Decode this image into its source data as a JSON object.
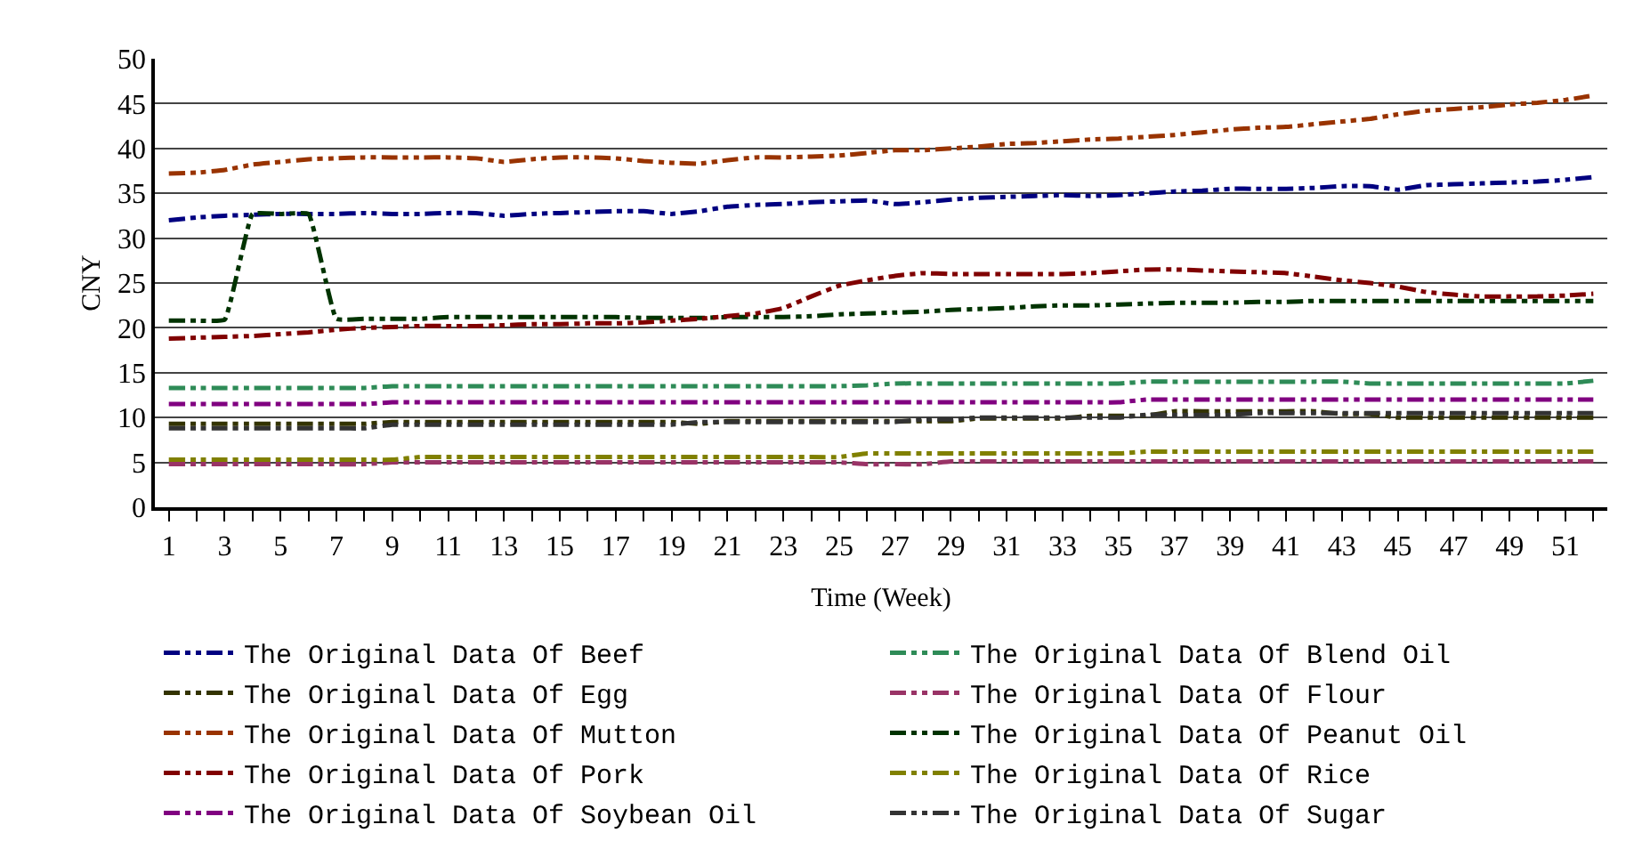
{
  "chart_data": {
    "type": "line",
    "xlabel": "Time (Week)",
    "ylabel": "CNY",
    "x": [
      1,
      2,
      3,
      4,
      5,
      6,
      7,
      8,
      9,
      10,
      11,
      12,
      13,
      14,
      15,
      16,
      17,
      18,
      19,
      20,
      21,
      22,
      23,
      24,
      25,
      26,
      27,
      28,
      29,
      30,
      31,
      32,
      33,
      34,
      35,
      36,
      37,
      38,
      39,
      40,
      41,
      42,
      43,
      44,
      45,
      46,
      47,
      48,
      49,
      50,
      51,
      52
    ],
    "xlim": [
      0.5,
      52.5
    ],
    "xticks": [
      1,
      {
        "value": 2,
        "label": null
      },
      3,
      {
        "value": 4,
        "label": null
      },
      5,
      {
        "value": 6,
        "label": null
      },
      7,
      {
        "value": 8,
        "label": null
      },
      9,
      {
        "value": 10,
        "label": null
      },
      11,
      {
        "value": 12,
        "label": null
      },
      13,
      {
        "value": 14,
        "label": null
      },
      15,
      {
        "value": 16,
        "label": null
      },
      17,
      {
        "value": 18,
        "label": null
      },
      19,
      {
        "value": 20,
        "label": null
      },
      21,
      {
        "value": 22,
        "label": null
      },
      23,
      {
        "value": 24,
        "label": null
      },
      25,
      {
        "value": 26,
        "label": null
      },
      27,
      {
        "value": 28,
        "label": null
      },
      29,
      {
        "value": 30,
        "label": null
      },
      31,
      {
        "value": 32,
        "label": null
      },
      33,
      {
        "value": 34,
        "label": null
      },
      35,
      {
        "value": 36,
        "label": null
      },
      37,
      {
        "value": 38,
        "label": null
      },
      39,
      {
        "value": 40,
        "label": null
      },
      41,
      {
        "value": 42,
        "label": null
      },
      43,
      {
        "value": 44,
        "label": null
      },
      45,
      {
        "value": 46,
        "label": null
      },
      47,
      {
        "value": 48,
        "label": null
      },
      49,
      {
        "value": 50,
        "label": null
      },
      51,
      {
        "value": 52,
        "label": null
      }
    ],
    "ylim": [
      0,
      50
    ],
    "yticks": [
      0,
      5,
      10,
      15,
      20,
      25,
      30,
      35,
      40,
      45,
      50
    ],
    "grid": "y",
    "legend": "bottom",
    "line_style": "dashed",
    "marker": "none",
    "series": [
      {
        "name": "The Original Data Of Beef",
        "color": "#000080",
        "values": [
          32.0,
          32.3,
          32.5,
          32.6,
          32.7,
          32.7,
          32.7,
          32.8,
          32.7,
          32.7,
          32.8,
          32.8,
          32.5,
          32.7,
          32.8,
          32.9,
          33.0,
          33.0,
          32.7,
          33.0,
          33.5,
          33.7,
          33.8,
          34.0,
          34.1,
          34.2,
          33.8,
          34.0,
          34.3,
          34.5,
          34.6,
          34.7,
          34.8,
          34.7,
          34.8,
          35.0,
          35.2,
          35.3,
          35.5,
          35.5,
          35.5,
          35.6,
          35.8,
          35.8,
          35.4,
          35.9,
          36.0,
          36.1,
          36.2,
          36.3,
          36.5,
          36.8
        ]
      },
      {
        "name": "The Original Data Of Blend Oil",
        "color": "#2e8b57",
        "values": [
          13.3,
          13.3,
          13.3,
          13.3,
          13.3,
          13.3,
          13.3,
          13.3,
          13.5,
          13.5,
          13.5,
          13.5,
          13.5,
          13.5,
          13.5,
          13.5,
          13.5,
          13.5,
          13.5,
          13.5,
          13.5,
          13.5,
          13.5,
          13.5,
          13.5,
          13.6,
          13.8,
          13.8,
          13.8,
          13.8,
          13.8,
          13.8,
          13.8,
          13.8,
          13.8,
          14.0,
          14.0,
          14.0,
          14.0,
          14.0,
          14.0,
          14.0,
          14.0,
          13.8,
          13.8,
          13.8,
          13.8,
          13.8,
          13.8,
          13.8,
          13.8,
          14.1
        ]
      },
      {
        "name": "The Original Data Of Egg",
        "color": "#333300",
        "values": [
          9.3,
          9.3,
          9.3,
          9.3,
          9.3,
          9.3,
          9.3,
          9.3,
          9.5,
          9.5,
          9.5,
          9.5,
          9.5,
          9.5,
          9.5,
          9.5,
          9.5,
          9.5,
          9.5,
          9.3,
          9.6,
          9.6,
          9.6,
          9.6,
          9.6,
          9.6,
          9.6,
          9.6,
          9.6,
          9.9,
          9.9,
          9.9,
          9.9,
          10.2,
          10.2,
          10.2,
          10.7,
          10.7,
          10.7,
          10.7,
          10.7,
          10.7,
          10.4,
          10.4,
          10.0,
          10.0,
          10.0,
          10.0,
          10.0,
          10.0,
          10.0,
          10.0
        ]
      },
      {
        "name": "The Original Data Of Flour",
        "color": "#993366",
        "values": [
          4.8,
          4.8,
          4.8,
          4.8,
          4.8,
          4.8,
          4.8,
          4.8,
          5.0,
          5.0,
          5.0,
          5.0,
          5.0,
          5.0,
          5.0,
          5.0,
          5.0,
          5.0,
          5.0,
          5.0,
          5.0,
          5.0,
          5.0,
          5.0,
          5.0,
          4.8,
          4.8,
          4.8,
          5.1,
          5.1,
          5.1,
          5.1,
          5.1,
          5.1,
          5.1,
          5.1,
          5.1,
          5.1,
          5.1,
          5.1,
          5.1,
          5.1,
          5.1,
          5.1,
          5.1,
          5.1,
          5.1,
          5.1,
          5.1,
          5.1,
          5.1,
          5.1
        ]
      },
      {
        "name": "The Original Data Of Mutton",
        "color": "#993300",
        "values": [
          37.2,
          37.3,
          37.6,
          38.2,
          38.5,
          38.8,
          38.9,
          39.0,
          39.0,
          39.0,
          39.0,
          38.9,
          38.5,
          38.8,
          39.0,
          39.0,
          38.9,
          38.6,
          38.4,
          38.3,
          38.7,
          39.0,
          39.0,
          39.1,
          39.2,
          39.5,
          39.8,
          39.8,
          40.0,
          40.2,
          40.5,
          40.6,
          40.8,
          41.0,
          41.1,
          41.3,
          41.5,
          41.8,
          42.1,
          42.3,
          42.4,
          42.7,
          43.0,
          43.3,
          43.8,
          44.2,
          44.4,
          44.6,
          44.9,
          45.1,
          45.4,
          45.9
        ]
      },
      {
        "name": "The Original Data Of Peanut Oil",
        "color": "#003300",
        "values": [
          20.8,
          20.8,
          20.9,
          32.7,
          32.7,
          32.7,
          21.0,
          21.0,
          21.0,
          21.0,
          21.2,
          21.2,
          21.2,
          21.2,
          21.2,
          21.2,
          21.2,
          21.1,
          21.1,
          21.1,
          21.2,
          21.2,
          21.2,
          21.3,
          21.5,
          21.6,
          21.7,
          21.8,
          22.0,
          22.1,
          22.2,
          22.4,
          22.5,
          22.5,
          22.6,
          22.7,
          22.8,
          22.8,
          22.8,
          22.9,
          22.9,
          23.0,
          23.0,
          23.0,
          23.0,
          23.0,
          23.0,
          23.0,
          23.0,
          23.0,
          23.0,
          23.0
        ]
      },
      {
        "name": "The Original Data Of Pork",
        "color": "#800000",
        "values": [
          18.8,
          18.9,
          19.0,
          19.1,
          19.3,
          19.5,
          19.8,
          20.0,
          20.1,
          20.2,
          20.2,
          20.2,
          20.3,
          20.4,
          20.4,
          20.5,
          20.5,
          20.6,
          20.8,
          21.0,
          21.3,
          21.6,
          22.2,
          23.5,
          24.7,
          25.3,
          25.8,
          26.1,
          26.0,
          26.0,
          26.0,
          26.0,
          26.0,
          26.1,
          26.3,
          26.5,
          26.5,
          26.4,
          26.3,
          26.2,
          26.1,
          25.7,
          25.3,
          25.0,
          24.6,
          24.0,
          23.7,
          23.5,
          23.5,
          23.5,
          23.6,
          23.8
        ]
      },
      {
        "name": "The Original Data Of Rice",
        "color": "#808000",
        "values": [
          5.3,
          5.3,
          5.3,
          5.3,
          5.3,
          5.3,
          5.3,
          5.3,
          5.3,
          5.6,
          5.6,
          5.6,
          5.6,
          5.6,
          5.6,
          5.6,
          5.6,
          5.6,
          5.6,
          5.6,
          5.6,
          5.6,
          5.6,
          5.6,
          5.6,
          6.0,
          6.0,
          6.0,
          6.0,
          6.0,
          6.0,
          6.0,
          6.0,
          6.0,
          6.0,
          6.2,
          6.2,
          6.2,
          6.2,
          6.2,
          6.2,
          6.2,
          6.2,
          6.2,
          6.2,
          6.2,
          6.2,
          6.2,
          6.2,
          6.2,
          6.2,
          6.2
        ]
      },
      {
        "name": "The Original Data Of Soybean Oil",
        "color": "#800080",
        "values": [
          11.5,
          11.5,
          11.5,
          11.5,
          11.5,
          11.5,
          11.5,
          11.5,
          11.7,
          11.7,
          11.7,
          11.7,
          11.7,
          11.7,
          11.7,
          11.7,
          11.7,
          11.7,
          11.7,
          11.7,
          11.7,
          11.7,
          11.7,
          11.7,
          11.7,
          11.7,
          11.7,
          11.7,
          11.7,
          11.7,
          11.7,
          11.7,
          11.7,
          11.7,
          11.7,
          12.0,
          12.0,
          12.0,
          12.0,
          12.0,
          12.0,
          12.0,
          12.0,
          12.0,
          12.0,
          12.0,
          12.0,
          12.0,
          12.0,
          12.0,
          12.0,
          12.0
        ]
      },
      {
        "name": "The Original Data Of Sugar",
        "color": "#333333",
        "values": [
          8.8,
          8.8,
          8.8,
          8.8,
          8.8,
          8.8,
          8.8,
          8.8,
          9.2,
          9.2,
          9.2,
          9.2,
          9.2,
          9.2,
          9.2,
          9.2,
          9.2,
          9.2,
          9.2,
          9.5,
          9.5,
          9.5,
          9.5,
          9.5,
          9.5,
          9.5,
          9.5,
          9.8,
          9.8,
          10.0,
          10.0,
          10.0,
          10.0,
          10.0,
          10.0,
          10.3,
          10.3,
          10.3,
          10.3,
          10.5,
          10.5,
          10.5,
          10.5,
          10.5,
          10.5,
          10.5,
          10.5,
          10.5,
          10.5,
          10.5,
          10.5,
          10.5
        ]
      }
    ]
  }
}
